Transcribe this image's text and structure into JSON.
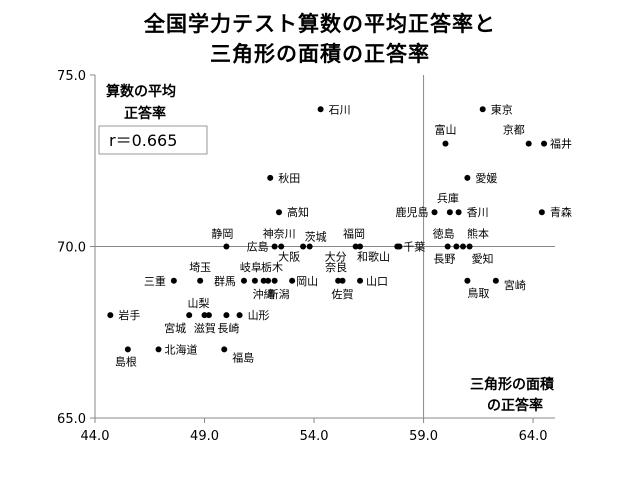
{
  "chart_data": {
    "type": "scatter",
    "title": [
      "全国学力テスト算数の平均正答率と",
      "三角形の面積の正答率"
    ],
    "ylabel": [
      "算数の平均",
      "正答率"
    ],
    "xlabel": [
      "三角形の面積",
      "の正答率"
    ],
    "annotation": "r＝0.665",
    "xlim": [
      44.0,
      65.0
    ],
    "ylim": [
      65.0,
      75.0
    ],
    "xticks": [
      "44.0",
      "49.0",
      "54.0",
      "59.0",
      "64.0"
    ],
    "yticks": [
      "65.0",
      "70.0",
      "75.0"
    ],
    "reference_lines": {
      "x": 59.0,
      "y": 70.0
    },
    "points": [
      {
        "label": "石川",
        "x": 54.3,
        "y": 74.0
      },
      {
        "label": "東京",
        "x": 61.7,
        "y": 74.0
      },
      {
        "label": "富山",
        "x": 60.0,
        "y": 73.0
      },
      {
        "label": "京都",
        "x": 63.8,
        "y": 73.0
      },
      {
        "label": "福井",
        "x": 64.5,
        "y": 73.0
      },
      {
        "label": "秋田",
        "x": 52.0,
        "y": 72.0
      },
      {
        "label": "愛媛",
        "x": 61.0,
        "y": 72.0
      },
      {
        "label": "高知",
        "x": 52.4,
        "y": 71.0
      },
      {
        "label": "鹿児島",
        "x": 59.5,
        "y": 71.0
      },
      {
        "label": "兵庫",
        "x": 60.2,
        "y": 71.0
      },
      {
        "label": "香川",
        "x": 60.6,
        "y": 71.0
      },
      {
        "label": "青森",
        "x": 64.4,
        "y": 71.0
      },
      {
        "label": "静岡",
        "x": 50.0,
        "y": 70.0
      },
      {
        "label": "広島",
        "x": 52.2,
        "y": 70.0
      },
      {
        "label": "神奈川",
        "x": 52.5,
        "y": 70.0
      },
      {
        "label": "大阪",
        "x": 53.5,
        "y": 70.0
      },
      {
        "label": "茨城",
        "x": 53.8,
        "y": 70.0
      },
      {
        "label": "大分",
        "x": 55.9,
        "y": 70.0
      },
      {
        "label": "福岡",
        "x": 56.1,
        "y": 70.0
      },
      {
        "label": "和歌山",
        "x": 57.9,
        "y": 70.0
      },
      {
        "label": "千葉",
        "x": 57.8,
        "y": 70.0
      },
      {
        "label": "徳島",
        "x": 60.1,
        "y": 70.0
      },
      {
        "label": "長野",
        "x": 60.5,
        "y": 70.0
      },
      {
        "label": "熊本",
        "x": 60.8,
        "y": 70.0
      },
      {
        "label": "愛知",
        "x": 61.1,
        "y": 70.0
      },
      {
        "label": "三重",
        "x": 47.6,
        "y": 69.0
      },
      {
        "label": "埼玉",
        "x": 48.8,
        "y": 69.0
      },
      {
        "label": "群馬",
        "x": 50.8,
        "y": 69.0
      },
      {
        "label": "岐阜",
        "x": 51.3,
        "y": 69.0
      },
      {
        "label": "栃木",
        "x": 51.9,
        "y": 69.0
      },
      {
        "label": "沖縄",
        "x": 51.7,
        "y": 69.0
      },
      {
        "label": "新潟",
        "x": 52.2,
        "y": 69.0
      },
      {
        "label": "岡山",
        "x": 53.0,
        "y": 69.0
      },
      {
        "label": "奈良",
        "x": 55.1,
        "y": 69.0
      },
      {
        "label": "佐賀",
        "x": 55.3,
        "y": 69.0
      },
      {
        "label": "山口",
        "x": 56.1,
        "y": 69.0
      },
      {
        "label": "鳥取",
        "x": 61.0,
        "y": 69.0
      },
      {
        "label": "宮崎",
        "x": 62.3,
        "y": 69.0
      },
      {
        "label": "岩手",
        "x": 44.7,
        "y": 68.0
      },
      {
        "label": "宮城",
        "x": 48.3,
        "y": 68.0
      },
      {
        "label": "山梨",
        "x": 49.0,
        "y": 68.0
      },
      {
        "label": "滋賀",
        "x": 49.2,
        "y": 68.0
      },
      {
        "label": "長崎",
        "x": 50.0,
        "y": 68.0
      },
      {
        "label": "山形",
        "x": 50.6,
        "y": 68.0
      },
      {
        "label": "島根",
        "x": 45.5,
        "y": 67.0
      },
      {
        "label": "北海道",
        "x": 46.9,
        "y": 67.0
      },
      {
        "label": "福島",
        "x": 49.9,
        "y": 67.0
      }
    ]
  }
}
